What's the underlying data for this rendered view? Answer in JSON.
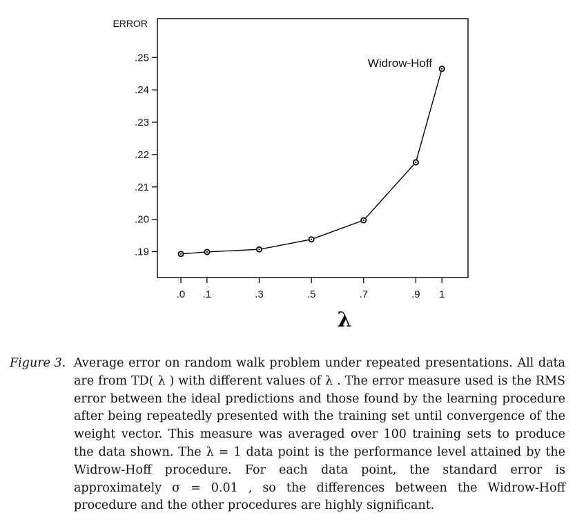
{
  "chart_data": {
    "type": "line",
    "title": "",
    "xlabel": "λ",
    "ylabel": "ERROR",
    "x": [
      0.0,
      0.1,
      0.3,
      0.5,
      0.7,
      0.9,
      1.0
    ],
    "x_tick_labels": [
      ".0",
      ".1",
      ".3",
      ".5",
      ".7",
      ".9",
      "1"
    ],
    "series": [
      {
        "values": [
          0.1893,
          0.1899,
          0.1907,
          0.1938,
          0.1997,
          0.2176,
          0.2465
        ]
      }
    ],
    "y_ticks": [
      0.19,
      0.2,
      0.21,
      0.22,
      0.23,
      0.24,
      0.25
    ],
    "y_tick_labels": [
      ".19",
      ".20",
      ".21",
      ".22",
      ".23",
      ".24",
      ".25"
    ],
    "xlim": [
      -0.09,
      1.1
    ],
    "ylim": [
      0.182,
      0.262
    ],
    "annotations": [
      {
        "text": "Widrow-Hoff",
        "x": 1.0,
        "y": 0.2465
      }
    ],
    "grid": false,
    "line_color": "#000000"
  },
  "caption": {
    "label": "Figure 3.",
    "text": "Average error on random walk problem under repeated presentations. All data are from TD( λ ) with different values of λ . The error measure used is the RMS error between the ideal predictions and those found by the learning procedure after being repeatedly presented with the training set until convergence of the weight vector. This measure was averaged over 100 training sets to produce the data shown. The λ = 1 data point is the performance level attained by the Widrow-Hoff procedure. For each data point, the standard error is approximately σ = 0.01 , so the differences between the Widrow-Hoff procedure and the other procedures are highly significant."
  }
}
